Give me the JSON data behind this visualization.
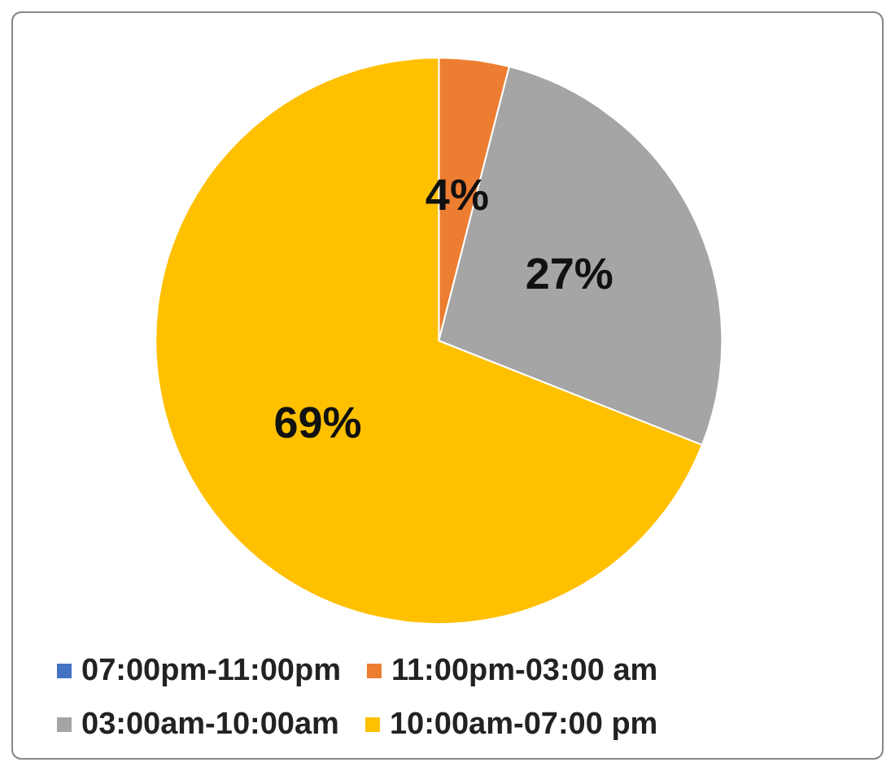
{
  "chart_data": {
    "type": "pie",
    "categories": [
      "07:00pm-11:00pm",
      "11:00pm-03:00 am",
      "03:00am-10:00am",
      "10:00am-07:00 pm"
    ],
    "values": [
      0,
      4,
      27,
      69
    ],
    "colors": [
      "#4472c4",
      "#ed7d31",
      "#a5a5a5",
      "#ffc000"
    ],
    "value_labels": [
      null,
      "4%",
      "27%",
      "69%"
    ],
    "legend": "bottom"
  }
}
